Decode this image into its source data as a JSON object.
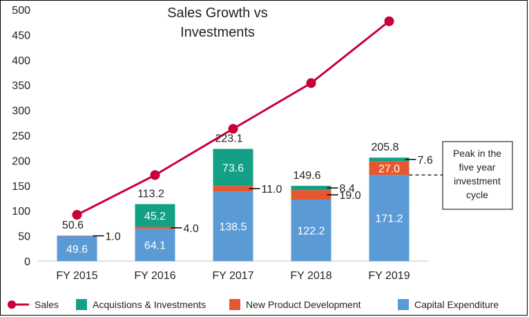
{
  "chart_data": {
    "type": "bar",
    "title_lines": [
      "Sales Growth vs",
      "Investments"
    ],
    "categories": [
      "FY 2015",
      "FY 2016",
      "FY 2017",
      "FY 2018",
      "FY 2019"
    ],
    "ylim": [
      0,
      500
    ],
    "yticks": [
      0,
      50,
      100,
      150,
      200,
      250,
      300,
      350,
      400,
      450,
      500
    ],
    "stack_order": [
      "Capital Expenditure",
      "New Product Development",
      "Acquistions & Investments"
    ],
    "series": [
      {
        "name": "Capital Expenditure",
        "kind": "bar",
        "color": "#5b9bd5",
        "values": [
          49.6,
          64.1,
          138.5,
          122.2,
          171.2
        ],
        "labels": [
          "49.6",
          "64.1",
          "138.5",
          "122.2",
          "171.2"
        ]
      },
      {
        "name": "New Product Development",
        "kind": "bar",
        "color": "#e5572e",
        "values": [
          1.0,
          4.0,
          11.0,
          19.0,
          27.0
        ],
        "labels": [
          "1.0",
          "4.0",
          "11.0",
          "19.0",
          "27.0"
        ]
      },
      {
        "name": "Acquistions & Investments",
        "kind": "bar",
        "color": "#14a085",
        "values": [
          0,
          45.2,
          73.6,
          8.4,
          7.6
        ],
        "labels": [
          "",
          "45.2",
          "73.6",
          "8.4",
          "7.6"
        ]
      },
      {
        "name": "Sales",
        "kind": "line",
        "color": "#c7003a",
        "values": [
          92,
          171,
          263,
          354,
          477
        ]
      }
    ],
    "totals": [
      "50.6",
      "113.2",
      "223.1",
      "149.6",
      "205.8"
    ],
    "annotation": {
      "lines": [
        "Peak in the",
        "five year",
        "investment",
        "cycle"
      ]
    }
  }
}
